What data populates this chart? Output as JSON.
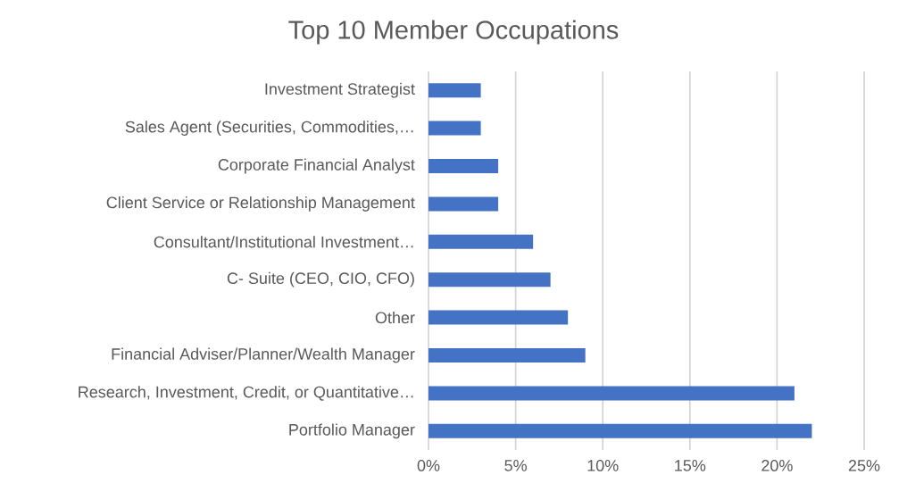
{
  "chart_data": {
    "type": "bar",
    "orientation": "horizontal",
    "title": "Top 10 Member Occupations",
    "categories": [
      "Investment Strategist",
      "Sales Agent (Securities, Commodities,…",
      "Corporate Financial Analyst",
      "Client Service or Relationship Management",
      "Consultant/Institutional Investment…",
      "C- Suite (CEO, CIO, CFO)",
      "Other",
      "Financial Adviser/Planner/Wealth Manager",
      "Research,  Investment, Credit, or Quantitative…",
      "Portfolio Manager"
    ],
    "values": [
      3,
      3,
      4,
      4,
      6,
      7,
      8,
      9,
      21,
      22
    ],
    "color": "#4472c4",
    "xlim": [
      0,
      25
    ],
    "xticks": [
      {
        "value": 0,
        "label": "0%"
      },
      {
        "value": 5,
        "label": "5%"
      },
      {
        "value": 10,
        "label": "10%"
      },
      {
        "value": 15,
        "label": "15%"
      },
      {
        "value": 20,
        "label": "20%"
      },
      {
        "value": 25,
        "label": "25%"
      }
    ],
    "grid": "x"
  }
}
